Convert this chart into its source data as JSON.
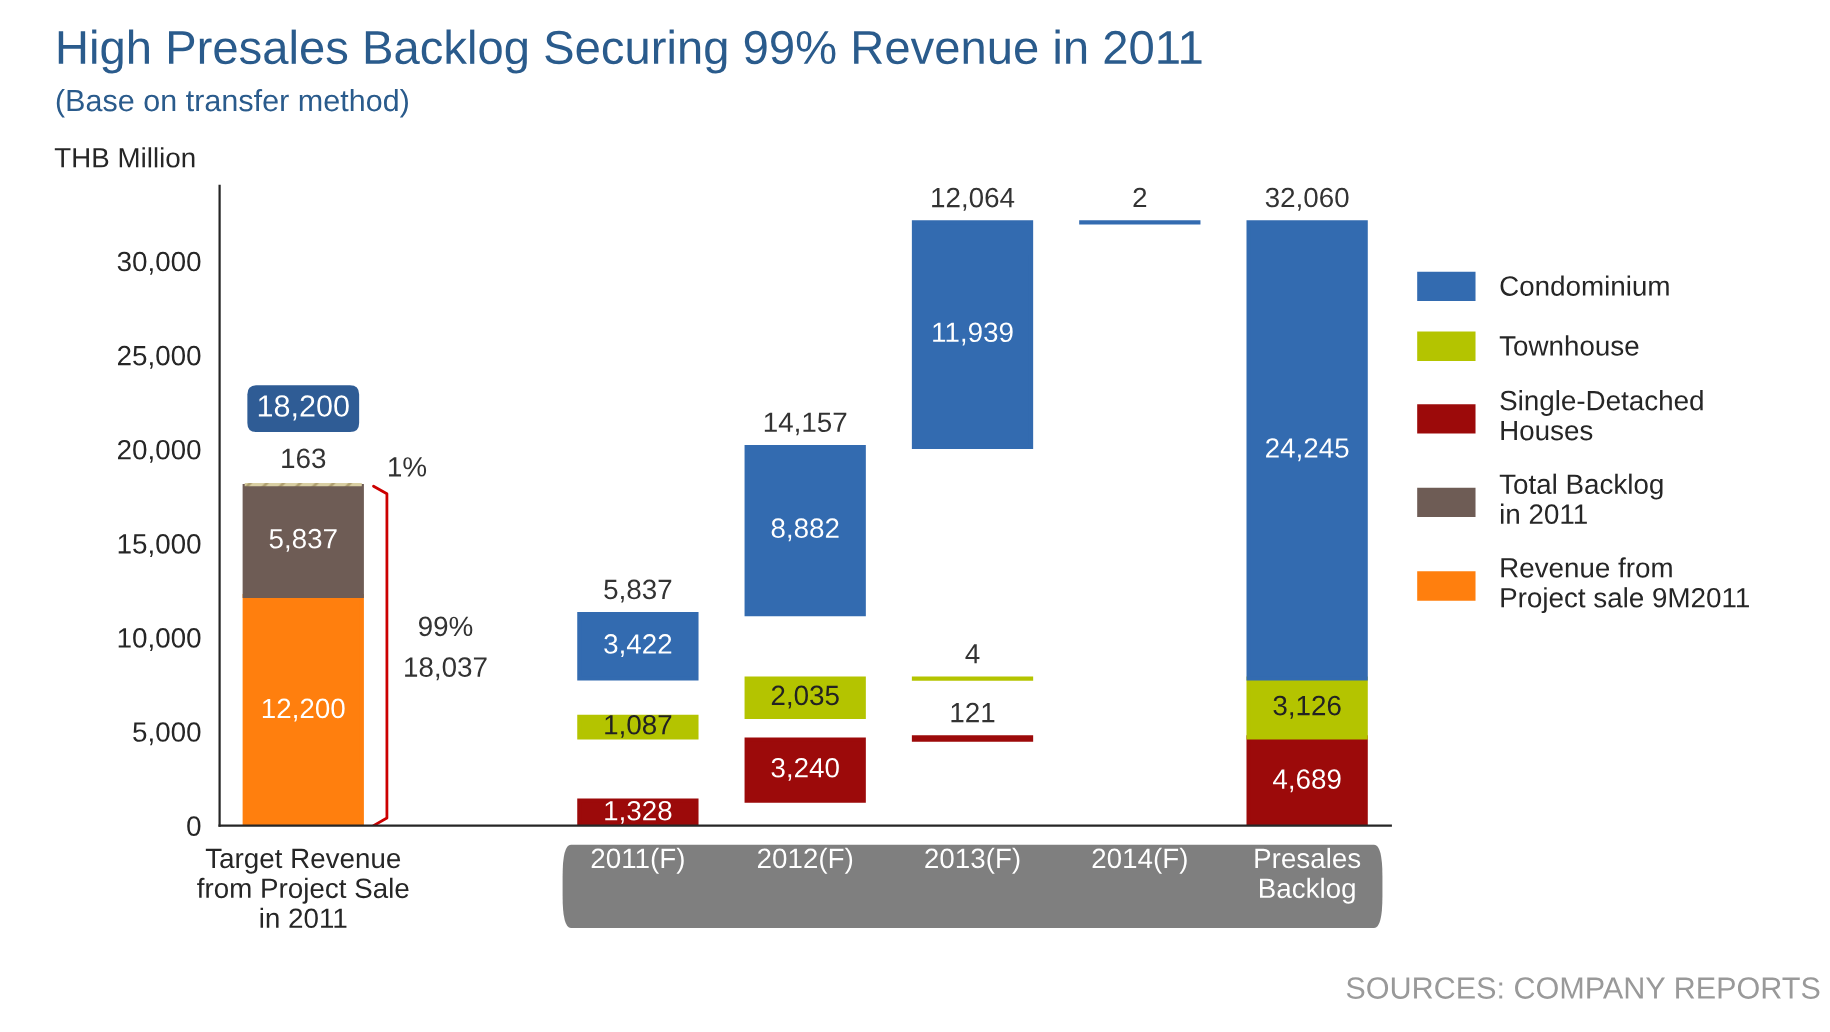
{
  "chart_data": {
    "type": "bar",
    "title": "High Presales Backlog Securing 99% Revenue in 2011",
    "subtitle": "(Base on transfer method)",
    "ylabel": "THB Million",
    "categories": [
      "Target Revenue\nfrom Project Sale\nin 2011",
      null,
      "2011(F)",
      "2012(F)",
      "2013(F)",
      "2014(F)",
      "Presales\nBacklog"
    ],
    "series": [
      {
        "name": "Revenue from\nProject sale 9M2011",
        "color": "#ff7f0e",
        "values": [
          12200,
          null,
          null,
          null,
          null,
          null,
          null
        ],
        "base": [
          0,
          null,
          null,
          null,
          null,
          null,
          null
        ],
        "value_labels": [
          "12,200",
          null,
          null,
          null,
          null,
          null,
          null
        ]
      },
      {
        "name": "Total Backlog\nin 2011",
        "color": "#6e5c55",
        "values": [
          5837,
          null,
          null,
          null,
          null,
          null,
          null
        ],
        "base": [
          12200,
          null,
          null,
          null,
          null,
          null,
          null
        ],
        "value_labels": [
          "5,837",
          null,
          null,
          null,
          null,
          null,
          null
        ]
      },
      {
        "color": "#d9cfa3",
        "values": [
          163,
          null,
          null,
          null,
          null,
          null,
          null
        ],
        "base": [
          18037,
          null,
          null,
          null,
          null,
          null,
          null
        ],
        "value_labels": [
          "163",
          null,
          null,
          null,
          null,
          null,
          null
        ]
      },
      {
        "name": "Single-Detached\nHouses",
        "color": "#9c0a0a",
        "values": [
          null,
          null,
          1328,
          3240,
          121,
          null,
          4689
        ],
        "base": [
          null,
          null,
          0,
          1328,
          4568,
          null,
          0
        ],
        "value_labels": [
          null,
          null,
          "1,328",
          "3,240",
          "121",
          null,
          "4,689"
        ]
      },
      {
        "name": "Townhouse",
        "color": "#b4c400",
        "values": [
          null,
          null,
          1087,
          2035,
          4,
          null,
          3126
        ],
        "base": [
          null,
          null,
          4689,
          5776,
          7811,
          null,
          4689
        ],
        "value_labels": [
          null,
          null,
          "1,087",
          "2,035",
          "4",
          null,
          "3,126"
        ]
      },
      {
        "name": "Condominium",
        "color": "#336bb0",
        "values": [
          null,
          null,
          3422,
          8882,
          11939,
          2,
          24245
        ],
        "base": [
          null,
          null,
          7815,
          11237,
          20119,
          32058,
          7815
        ],
        "value_labels": [
          null,
          null,
          "3,422",
          "8,882",
          "11,939",
          null,
          "24,245"
        ]
      }
    ],
    "totals": [
      "18,200",
      null,
      "5,837",
      "14,157",
      "12,064",
      "2",
      "32,060"
    ],
    "ylim": [
      0,
      34000
    ],
    "yticks": [
      0,
      {
        "value": 5000,
        "label": "5,000"
      },
      {
        "value": 10000,
        "label": "10,000"
      },
      {
        "value": 15000,
        "label": "15,000"
      },
      {
        "value": 20000,
        "label": "20,000"
      },
      {
        "value": 25000,
        "label": "25,000"
      },
      {
        "value": 30000,
        "label": "30,000"
      }
    ],
    "annotations": [
      "1%",
      "99%",
      "18,037",
      "SOURCES: COMPANY REPORTS"
    ],
    "grid": false,
    "legend": "right"
  }
}
